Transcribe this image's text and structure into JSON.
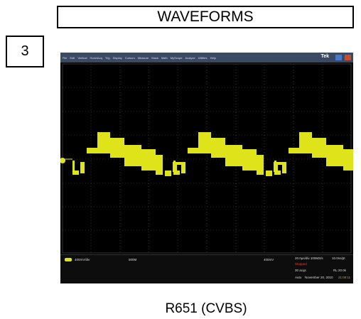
{
  "header": {
    "title": "WAVEFORMS",
    "section": "3"
  },
  "scope": {
    "menu": [
      "File",
      "Edit",
      "Vertical",
      "Horiz/Acq",
      "Trig",
      "Display",
      "Cursors",
      "Measure",
      "Mask",
      "Math",
      "MyScope",
      "Analyze",
      "Utilities",
      "Help"
    ],
    "brand": "Tek",
    "channel_scale": "400mV/div",
    "bandwidth": "500M",
    "trigger_level": "400mV",
    "timebase": "20.0µs/div  100MS/s",
    "resolution": "10.0ns/pt",
    "state": "Stopped",
    "acqs": "30 acqs",
    "record_length": "RL:20.0k",
    "mode": "Auto",
    "date": "November 20, 2010",
    "time": "21:00:11"
  },
  "caption": "R651 (CVBS)"
}
